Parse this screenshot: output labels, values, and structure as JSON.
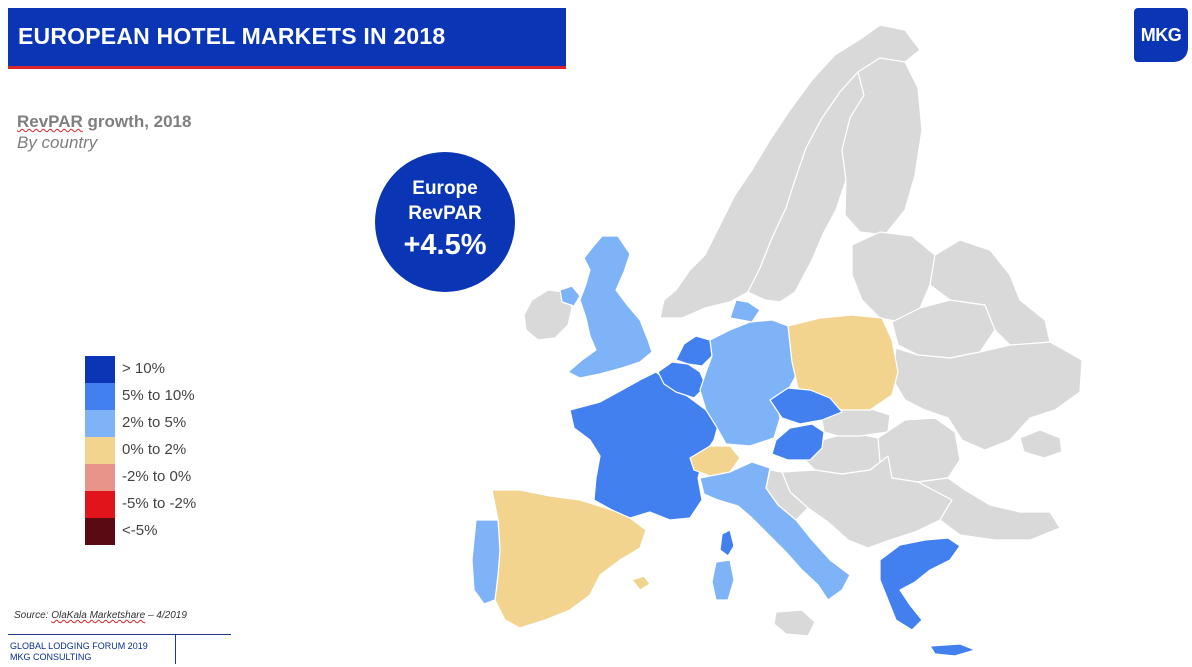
{
  "header": {
    "title": "EUROPEAN HOTEL MARKETS IN 2018",
    "logo_text": "MKG"
  },
  "subtitle": {
    "metric_word": "RevPAR",
    "metric_rest": " growth, 2018",
    "line2": "By country"
  },
  "badge": {
    "line1": "Europe",
    "line2": "RevPAR",
    "value": "+4.5%"
  },
  "legend": {
    "items": [
      {
        "label": "> 10%",
        "color": "#0a35b4"
      },
      {
        "label": "5% to 10%",
        "color": "#4180ee"
      },
      {
        "label": "2% to 5%",
        "color": "#7fb3f7"
      },
      {
        "label": "0% to 2%",
        "color": "#f2d48f"
      },
      {
        "label": "-2% to 0%",
        "color": "#e8948a"
      },
      {
        "label": "-5% to -2%",
        "color": "#e0141a"
      },
      {
        "label": "<-5%",
        "color": "#5a0a12"
      }
    ]
  },
  "map": {
    "no_data_color": "#d9d9d9",
    "countries": [
      {
        "name": "France",
        "category": "5% to 10%",
        "color": "#4180ee"
      },
      {
        "name": "Belgium",
        "category": "5% to 10%",
        "color": "#4180ee"
      },
      {
        "name": "Netherlands",
        "category": "5% to 10%",
        "color": "#4180ee"
      },
      {
        "name": "Czech Republic",
        "category": "5% to 10%",
        "color": "#4180ee"
      },
      {
        "name": "Austria",
        "category": "5% to 10%",
        "color": "#4180ee"
      },
      {
        "name": "Greece",
        "category": "5% to 10%",
        "color": "#4180ee"
      },
      {
        "name": "United Kingdom",
        "category": "2% to 5%",
        "color": "#7fb3f7"
      },
      {
        "name": "Germany",
        "category": "2% to 5%",
        "color": "#7fb3f7"
      },
      {
        "name": "Italy",
        "category": "2% to 5%",
        "color": "#7fb3f7"
      },
      {
        "name": "Portugal",
        "category": "2% to 5%",
        "color": "#7fb3f7"
      },
      {
        "name": "Denmark",
        "category": "2% to 5%",
        "color": "#7fb3f7"
      },
      {
        "name": "Spain",
        "category": "0% to 2%",
        "color": "#f2d48f"
      },
      {
        "name": "Switzerland",
        "category": "0% to 2%",
        "color": "#f2d48f"
      },
      {
        "name": "Poland",
        "category": "0% to 2%",
        "color": "#f2d48f"
      }
    ]
  },
  "source": {
    "prefix": "Source: ",
    "name": "OlaKala  Marketshare",
    "suffix": " – 4/2019"
  },
  "footer": {
    "line1": "GLOBAL LODGING FORUM 2019",
    "line2": "MKG CONSULTING"
  }
}
